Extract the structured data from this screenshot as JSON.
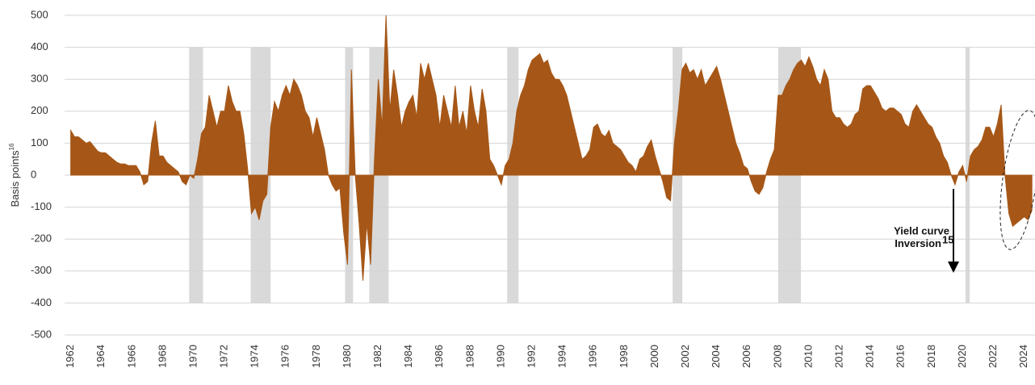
{
  "chart_data": {
    "type": "area",
    "y_label": "Basis points",
    "y_label_sup": "16",
    "annotation": {
      "lines": [
        "Yield curve",
        "Inversion"
      ],
      "sup": "15"
    },
    "color": "#a65717",
    "band_color": "#d9d9d9",
    "grid": true,
    "xlim": [
      1961.6,
      2024.7
    ],
    "ylim": [
      -500,
      500
    ],
    "yticks": [
      500,
      400,
      300,
      200,
      100,
      0,
      -100,
      -200,
      -300,
      -400,
      -500
    ],
    "xticks": [
      1962,
      1964,
      1966,
      1968,
      1970,
      1972,
      1974,
      1976,
      1978,
      1980,
      1982,
      1984,
      1986,
      1988,
      1990,
      1992,
      1994,
      1996,
      1998,
      2000,
      2002,
      2004,
      2006,
      2008,
      2010,
      2012,
      2014,
      2016,
      2018,
      2020,
      2022,
      2024
    ],
    "shaded_periods": [
      [
        1969.7,
        1970.6
      ],
      [
        1973.7,
        1975.0
      ],
      [
        1979.84,
        1980.36
      ],
      [
        1981.41,
        1982.67
      ],
      [
        1990.38,
        1991.12
      ],
      [
        2001.14,
        2001.77
      ],
      [
        2008.0,
        2009.48
      ],
      [
        2020.18,
        2020.45
      ]
    ],
    "shaded_range": [
      -400,
      400
    ],
    "x": [
      1962,
      1962.25,
      1962.5,
      1962.75,
      1963,
      1963.25,
      1963.5,
      1963.75,
      1964,
      1964.25,
      1964.5,
      1964.75,
      1965,
      1965.25,
      1965.5,
      1965.75,
      1966,
      1966.25,
      1966.5,
      1966.75,
      1967,
      1967.25,
      1967.5,
      1967.75,
      1968,
      1968.25,
      1968.5,
      1968.75,
      1969,
      1969.25,
      1969.5,
      1969.75,
      1970,
      1970.25,
      1970.5,
      1970.75,
      1971,
      1971.25,
      1971.5,
      1971.75,
      1972,
      1972.25,
      1972.5,
      1972.75,
      1973,
      1973.25,
      1973.5,
      1973.75,
      1974,
      1974.25,
      1974.5,
      1974.75,
      1975,
      1975.25,
      1975.5,
      1975.75,
      1976,
      1976.25,
      1976.5,
      1976.75,
      1977,
      1977.25,
      1977.5,
      1977.75,
      1978,
      1978.25,
      1978.5,
      1978.75,
      1979,
      1979.25,
      1979.5,
      1979.75,
      1980,
      1980.25,
      1980.5,
      1980.75,
      1981,
      1981.25,
      1981.5,
      1981.75,
      1982,
      1982.25,
      1982.5,
      1982.75,
      1983,
      1983.25,
      1983.5,
      1983.75,
      1984,
      1984.25,
      1984.5,
      1984.75,
      1985,
      1985.25,
      1985.5,
      1985.75,
      1986,
      1986.25,
      1986.5,
      1986.75,
      1987,
      1987.25,
      1987.5,
      1987.75,
      1988,
      1988.25,
      1988.5,
      1988.75,
      1989,
      1989.25,
      1989.5,
      1989.75,
      1990,
      1990.25,
      1990.5,
      1990.75,
      1991,
      1991.25,
      1991.5,
      1991.75,
      1992,
      1992.25,
      1992.5,
      1992.75,
      1993,
      1993.25,
      1993.5,
      1993.75,
      1994,
      1994.25,
      1994.5,
      1994.75,
      1995,
      1995.25,
      1995.5,
      1995.75,
      1996,
      1996.25,
      1996.5,
      1996.75,
      1997,
      1997.25,
      1997.5,
      1997.75,
      1998,
      1998.25,
      1998.5,
      1998.75,
      1999,
      1999.25,
      1999.5,
      1999.75,
      2000,
      2000.25,
      2000.5,
      2000.75,
      2001,
      2001.25,
      2001.5,
      2001.75,
      2002,
      2002.25,
      2002.5,
      2002.75,
      2003,
      2003.25,
      2003.5,
      2003.75,
      2004,
      2004.25,
      2004.5,
      2004.75,
      2005,
      2005.25,
      2005.5,
      2005.75,
      2006,
      2006.25,
      2006.5,
      2006.75,
      2007,
      2007.25,
      2007.5,
      2007.75,
      2008,
      2008.25,
      2008.5,
      2008.75,
      2009,
      2009.25,
      2009.5,
      2009.75,
      2010,
      2010.25,
      2010.5,
      2010.75,
      2011,
      2011.25,
      2011.5,
      2011.75,
      2012,
      2012.25,
      2012.5,
      2012.75,
      2013,
      2013.25,
      2013.5,
      2013.75,
      2014,
      2014.25,
      2014.5,
      2014.75,
      2015,
      2015.25,
      2015.5,
      2015.75,
      2016,
      2016.25,
      2016.5,
      2016.75,
      2017,
      2017.25,
      2017.5,
      2017.75,
      2018,
      2018.25,
      2018.5,
      2018.75,
      2019,
      2019.25,
      2019.5,
      2019.75,
      2020,
      2020.25,
      2020.5,
      2020.75,
      2021,
      2021.25,
      2021.5,
      2021.75,
      2022,
      2022.25,
      2022.5,
      2022.75,
      2023,
      2023.25,
      2023.5,
      2023.75,
      2024,
      2024.25,
      2024.5
    ],
    "values": [
      140,
      120,
      120,
      110,
      100,
      105,
      90,
      75,
      70,
      70,
      60,
      50,
      40,
      35,
      35,
      30,
      30,
      30,
      10,
      -30,
      -20,
      100,
      170,
      60,
      60,
      40,
      30,
      20,
      10,
      -20,
      -30,
      0,
      -10,
      50,
      130,
      150,
      250,
      200,
      150,
      200,
      200,
      280,
      230,
      200,
      200,
      130,
      20,
      -120,
      -100,
      -140,
      -80,
      -60,
      150,
      230,
      200,
      250,
      280,
      250,
      300,
      280,
      250,
      200,
      180,
      120,
      180,
      130,
      80,
      0,
      -30,
      -50,
      -40,
      -180,
      -280,
      330,
      0,
      -150,
      -330,
      -150,
      -280,
      50,
      300,
      150,
      500,
      200,
      330,
      250,
      150,
      200,
      230,
      250,
      180,
      350,
      300,
      350,
      300,
      250,
      150,
      250,
      200,
      150,
      280,
      150,
      200,
      130,
      280,
      200,
      150,
      270,
      200,
      50,
      30,
      0,
      -30,
      30,
      50,
      100,
      200,
      250,
      280,
      330,
      360,
      370,
      380,
      350,
      360,
      320,
      300,
      300,
      280,
      250,
      200,
      150,
      100,
      50,
      60,
      80,
      150,
      160,
      130,
      120,
      140,
      100,
      90,
      80,
      60,
      40,
      30,
      10,
      50,
      60,
      90,
      110,
      60,
      20,
      -20,
      -70,
      -80,
      100,
      200,
      330,
      350,
      320,
      330,
      300,
      330,
      280,
      300,
      320,
      340,
      300,
      250,
      200,
      150,
      100,
      70,
      30,
      20,
      -20,
      -50,
      -60,
      -40,
      10,
      50,
      80,
      250,
      250,
      280,
      300,
      330,
      350,
      360,
      340,
      370,
      340,
      300,
      280,
      330,
      300,
      200,
      180,
      180,
      160,
      150,
      160,
      190,
      200,
      270,
      280,
      280,
      260,
      240,
      210,
      200,
      210,
      210,
      200,
      190,
      160,
      150,
      200,
      220,
      200,
      180,
      160,
      150,
      120,
      100,
      60,
      40,
      0,
      -30,
      10,
      30,
      -20,
      60,
      80,
      90,
      110,
      150,
      150,
      120,
      160,
      220,
      0,
      -120,
      -160,
      -150,
      -140,
      -130,
      -140,
      -110
    ]
  }
}
